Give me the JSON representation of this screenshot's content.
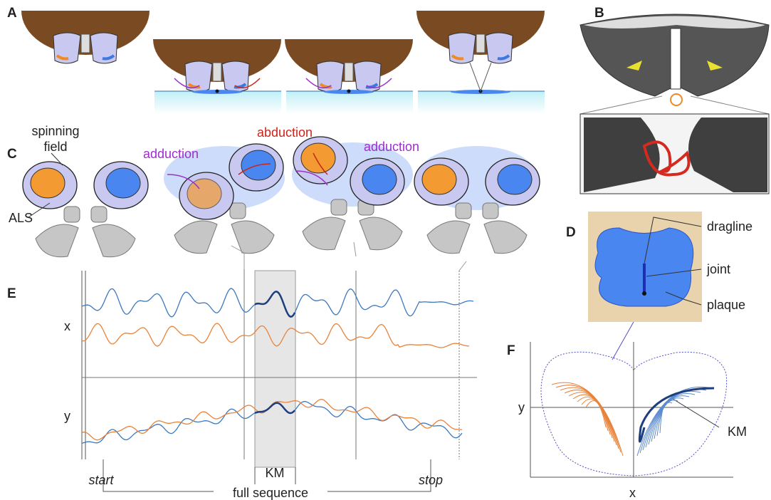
{
  "panel_letters": [
    "A",
    "B",
    "C",
    "D",
    "E",
    "F"
  ],
  "panel_c": {
    "spinning_field": [
      "spinning",
      "field"
    ],
    "als": "ALS",
    "movements": [
      "adduction",
      "abduction",
      "adduction"
    ]
  },
  "panel_d": {
    "labels": [
      "dragline",
      "joint",
      "plaque"
    ]
  },
  "panel_e": {
    "axis_labels": [
      "x",
      "y"
    ],
    "km": "KM",
    "start": "start",
    "stop": "stop",
    "full_sequence": "full sequence"
  },
  "panel_f": {
    "y_label": "y",
    "x_label": "x",
    "km": "KM"
  }
}
